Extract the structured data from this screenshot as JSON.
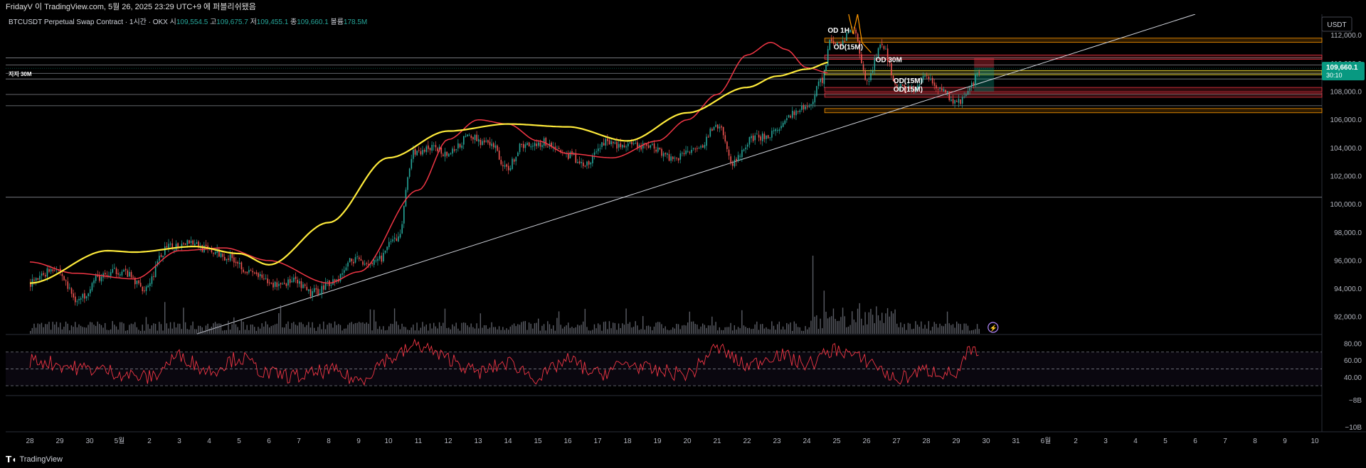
{
  "header": {
    "publish_line": "FridayV 이 TradingView.com, 5월 26, 2025 23:29 UTC+9 에 퍼블리쉬됐음"
  },
  "legend": {
    "symbol": "BTCUSDT Perpetual Swap Contract · 1시간 · OKX",
    "open_label": "시",
    "open": "109,554.5",
    "high_label": "고",
    "high": "109,675.7",
    "low_label": "저",
    "low": "109,455.1",
    "close_label": "종",
    "close": "109,660.1",
    "volume_label": "볼륨",
    "volume": "178.5M"
  },
  "currency_badge": "USDT",
  "price_tag": {
    "price": "109,660.1",
    "countdown": "30:10"
  },
  "footer": {
    "logo_text": "TradingView"
  },
  "colors": {
    "candle_up": "#26a69a",
    "candle_down": "#ef5350",
    "ma_fast": "#f23645",
    "ma_slow": "#ffeb3b",
    "rsi": "#f23645",
    "price_badge": "#089981"
  },
  "chart_data": {
    "type": "candlestick",
    "price_axis": {
      "ticks": [
        "112,000.0",
        "110,000.0",
        "108,000.0",
        "106,000.0",
        "104,000.0",
        "102,000.0",
        "100,000.0",
        "98,000.0",
        "96,000.0",
        "94,000.0",
        "92,000.0"
      ],
      "range": [
        90800,
        113500
      ]
    },
    "rsi_axis": {
      "ticks": [
        "80.00",
        "60.00",
        "40.00"
      ],
      "range": [
        20,
        90
      ],
      "bands": [
        70,
        50,
        30
      ]
    },
    "extra_axis_ticks": [
      "−8B",
      "−10B"
    ],
    "time_axis": [
      "28",
      "29",
      "30",
      "5월",
      "2",
      "3",
      "4",
      "5",
      "6",
      "7",
      "8",
      "9",
      "10",
      "11",
      "12",
      "13",
      "14",
      "15",
      "16",
      "17",
      "18",
      "19",
      "20",
      "21",
      "22",
      "23",
      "24",
      "25",
      "26",
      "27",
      "28",
      "29",
      "30",
      "31",
      "6월",
      "2",
      "3",
      "4",
      "5",
      "6",
      "7",
      "8",
      "9",
      "10"
    ],
    "slow_ma_anchors": [
      [
        0,
        94400
      ],
      [
        2.6,
        96700
      ],
      [
        3.5,
        96600
      ],
      [
        5.5,
        97000
      ],
      [
        7,
        96500
      ],
      [
        8,
        95700
      ],
      [
        10,
        98700
      ],
      [
        12,
        103300
      ],
      [
        14,
        105200
      ],
      [
        16,
        105700
      ],
      [
        18,
        105500
      ],
      [
        20,
        104500
      ],
      [
        22,
        106500
      ],
      [
        24,
        108300
      ],
      [
        25,
        109100
      ],
      [
        26,
        109600
      ],
      [
        26.8,
        110100
      ]
    ],
    "fast_ma_anchors": [
      [
        0,
        95900
      ],
      [
        1.5,
        95100
      ],
      [
        3.5,
        94700
      ],
      [
        5,
        96700
      ],
      [
        6.5,
        96900
      ],
      [
        8,
        96000
      ],
      [
        10,
        94400
      ],
      [
        11,
        95200
      ],
      [
        13,
        101000
      ],
      [
        14,
        104600
      ],
      [
        15,
        106000
      ],
      [
        16,
        105700
      ],
      [
        17,
        104500
      ],
      [
        18,
        103600
      ],
      [
        19.5,
        103300
      ],
      [
        21,
        104500
      ],
      [
        22,
        106000
      ],
      [
        23,
        107800
      ],
      [
        24,
        110600
      ],
      [
        24.8,
        111500
      ],
      [
        25.3,
        111000
      ],
      [
        26,
        109700
      ],
      [
        26.8,
        109300
      ]
    ],
    "candle_anchors": [
      [
        0,
        94400
      ],
      [
        0.8,
        95500
      ],
      [
        1.6,
        93200
      ],
      [
        2.3,
        94800
      ],
      [
        3,
        95300
      ],
      [
        3.8,
        94100
      ],
      [
        4.6,
        96900
      ],
      [
        5.3,
        97400
      ],
      [
        6,
        96700
      ],
      [
        6.7,
        96200
      ],
      [
        7.4,
        95100
      ],
      [
        8.1,
        94300
      ],
      [
        8.8,
        94500
      ],
      [
        9.4,
        93700
      ],
      [
        10.2,
        94600
      ],
      [
        10.8,
        96100
      ],
      [
        11.5,
        95800
      ],
      [
        12.3,
        97600
      ],
      [
        12.8,
        103600
      ],
      [
        13.5,
        104000
      ],
      [
        14,
        103600
      ],
      [
        14.7,
        104800
      ],
      [
        15.5,
        104100
      ],
      [
        15.9,
        102500
      ],
      [
        16.5,
        104200
      ],
      [
        17.2,
        104400
      ],
      [
        18,
        103500
      ],
      [
        18.6,
        102800
      ],
      [
        19.2,
        104400
      ],
      [
        20,
        104100
      ],
      [
        20.8,
        104100
      ],
      [
        21.5,
        103300
      ],
      [
        22.4,
        104200
      ],
      [
        23,
        105600
      ],
      [
        23.5,
        103000
      ],
      [
        24.2,
        104700
      ],
      [
        25,
        105100
      ],
      [
        25.5,
        106400
      ],
      [
        26,
        106900
      ],
      [
        26.5,
        108900
      ],
      [
        26.8,
        111700
      ],
      [
        27,
        111300
      ],
      [
        27.5,
        112400
      ],
      [
        28,
        108900
      ],
      [
        28.5,
        111300
      ],
      [
        29,
        108500
      ],
      [
        29.5,
        108100
      ],
      [
        30,
        109000
      ],
      [
        30.5,
        108100
      ],
      [
        31,
        107200
      ],
      [
        31.3,
        107700
      ],
      [
        31.8,
        109600
      ]
    ],
    "rsi_anchors": [
      [
        0,
        60
      ],
      [
        2,
        50
      ],
      [
        4,
        40
      ],
      [
        5,
        65
      ],
      [
        6,
        48
      ],
      [
        7,
        63
      ],
      [
        8,
        44
      ],
      [
        9,
        41
      ],
      [
        10,
        48
      ],
      [
        11,
        37
      ],
      [
        12,
        62
      ],
      [
        13,
        78
      ],
      [
        14,
        62
      ],
      [
        15,
        46
      ],
      [
        16,
        57
      ],
      [
        17,
        40
      ],
      [
        18,
        60
      ],
      [
        19,
        44
      ],
      [
        20,
        56
      ],
      [
        21,
        47
      ],
      [
        22,
        44
      ],
      [
        23,
        74
      ],
      [
        24,
        54
      ],
      [
        25,
        67
      ],
      [
        26,
        56
      ],
      [
        27,
        73
      ],
      [
        28,
        60
      ],
      [
        29,
        38
      ],
      [
        30,
        48
      ],
      [
        31,
        44
      ],
      [
        31.5,
        72
      ],
      [
        31.8,
        62
      ]
    ],
    "trendline": {
      "from": [
        5.6,
        90800
      ],
      "to": [
        39,
        113500
      ]
    },
    "support_lines": [
      110400,
      109900,
      109300,
      108900,
      107800,
      107000,
      100500
    ],
    "zones": [
      {
        "from": 111800,
        "to": 111500,
        "color": "#ff9800"
      },
      {
        "from": 110600,
        "to": 110300,
        "color": "#f23645"
      },
      {
        "from": 109500,
        "to": 109200,
        "color": "#ffeb3b"
      },
      {
        "from": 108300,
        "to": 108000,
        "color": "#f23645"
      },
      {
        "from": 107900,
        "to": 107600,
        "color": "#f23645"
      },
      {
        "from": 106800,
        "to": 106500,
        "color": "#ff9800"
      }
    ],
    "annotations": [
      {
        "text": "OD 1H",
        "x": 26.7,
        "y": 112200
      },
      {
        "text": "OD(15M)",
        "x": 26.9,
        "y": 111000
      },
      {
        "text": "OD 30M",
        "x": 28.3,
        "y": 110100
      },
      {
        "text": "OD(15M)",
        "x": 28.9,
        "y": 108600
      },
      {
        "text": "OD(15M)",
        "x": 28.9,
        "y": 108000
      },
      {
        "text": "지지 30M",
        "x": 0.1,
        "y": 109100
      }
    ]
  }
}
